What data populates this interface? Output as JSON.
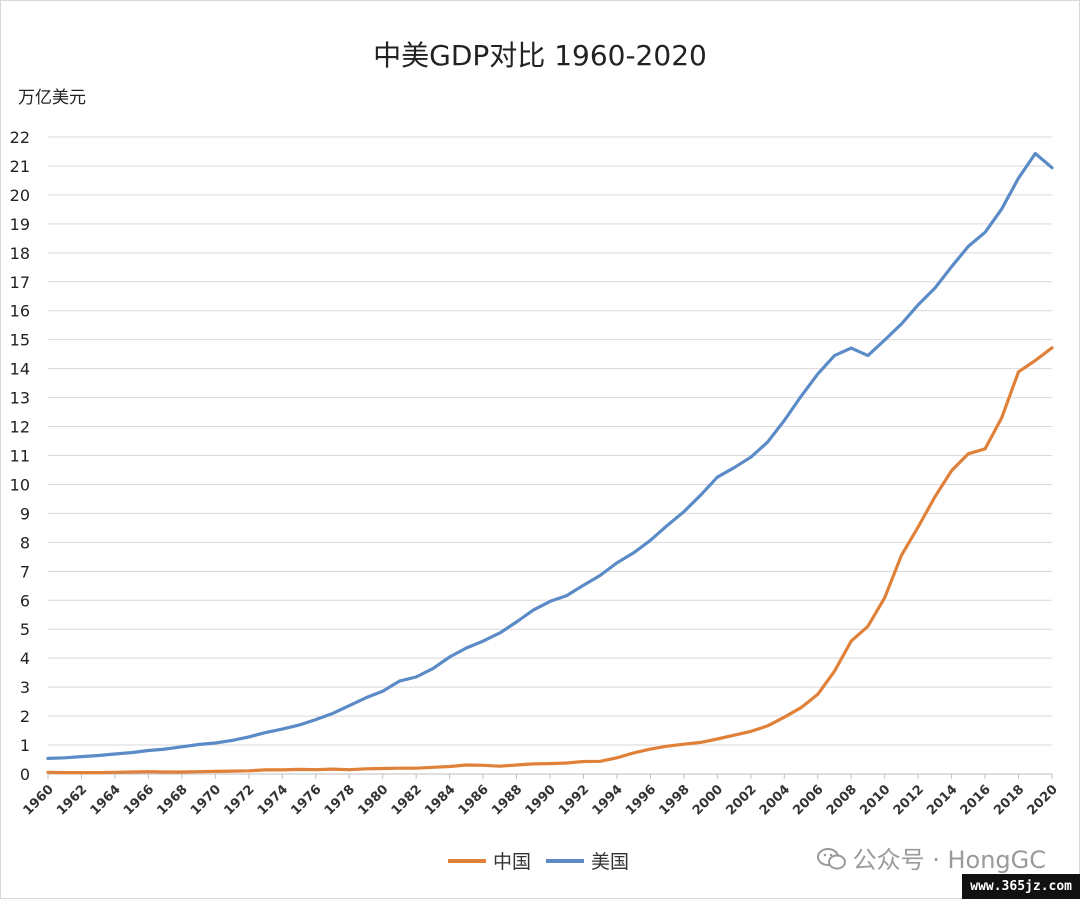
{
  "watermark": {
    "text": "公众号 · HongGC",
    "site": "www.365jz.com"
  },
  "colors": {
    "china": "#e0813a",
    "usa": "#5b8bc6"
  },
  "chart_data": {
    "type": "line",
    "title": "中美GDP对比 1960-2020",
    "ylabel": "万亿美元",
    "xlabel": "",
    "ylim": [
      0,
      22
    ],
    "xlim": [
      1960,
      2020
    ],
    "grid": true,
    "legend_position": "bottom",
    "yticks": [
      "0",
      "1",
      "2",
      "3",
      "4",
      "5",
      "6",
      "7",
      "8",
      "9",
      "10",
      "11",
      "12",
      "13",
      "14",
      "15",
      "16",
      "17",
      "18",
      "19",
      "20",
      "21",
      "22"
    ],
    "xticks": [
      "1960",
      "1962",
      "1964",
      "1966",
      "1968",
      "1970",
      "1972",
      "1974",
      "1976",
      "1978",
      "1980",
      "1982",
      "1984",
      "1986",
      "1988",
      "1990",
      "1992",
      "1994",
      "1996",
      "1998",
      "2000",
      "2002",
      "2004",
      "2006",
      "2008",
      "2010",
      "2012",
      "2014",
      "2016",
      "2018",
      "2020"
    ],
    "x": [
      1960,
      1961,
      1962,
      1963,
      1964,
      1965,
      1966,
      1967,
      1968,
      1969,
      1970,
      1971,
      1972,
      1973,
      1974,
      1975,
      1976,
      1977,
      1978,
      1979,
      1980,
      1981,
      1982,
      1983,
      1984,
      1985,
      1986,
      1987,
      1988,
      1989,
      1990,
      1991,
      1992,
      1993,
      1994,
      1995,
      1996,
      1997,
      1998,
      1999,
      2000,
      2001,
      2002,
      2003,
      2004,
      2005,
      2006,
      2007,
      2008,
      2009,
      2010,
      2011,
      2012,
      2013,
      2014,
      2015,
      2016,
      2017,
      2018,
      2019,
      2020
    ],
    "series": [
      {
        "name": "中国",
        "color": "#e0813a",
        "values": [
          0.06,
          0.05,
          0.05,
          0.05,
          0.06,
          0.07,
          0.08,
          0.07,
          0.07,
          0.08,
          0.09,
          0.1,
          0.11,
          0.14,
          0.14,
          0.16,
          0.15,
          0.17,
          0.15,
          0.18,
          0.19,
          0.2,
          0.2,
          0.23,
          0.26,
          0.31,
          0.3,
          0.27,
          0.31,
          0.35,
          0.36,
          0.38,
          0.43,
          0.44,
          0.56,
          0.73,
          0.86,
          0.96,
          1.03,
          1.09,
          1.21,
          1.34,
          1.47,
          1.66,
          1.96,
          2.29,
          2.75,
          3.55,
          4.59,
          5.1,
          6.09,
          7.55,
          8.53,
          9.57,
          10.48,
          11.06,
          11.23,
          12.31,
          13.89,
          14.28,
          14.72
        ]
      },
      {
        "name": "美国",
        "color": "#5b8bc6",
        "values": [
          0.54,
          0.56,
          0.6,
          0.64,
          0.69,
          0.74,
          0.81,
          0.86,
          0.94,
          1.02,
          1.07,
          1.16,
          1.28,
          1.43,
          1.55,
          1.69,
          1.88,
          2.09,
          2.36,
          2.63,
          2.86,
          3.21,
          3.35,
          3.64,
          4.04,
          4.35,
          4.59,
          4.87,
          5.25,
          5.66,
          5.96,
          6.16,
          6.52,
          6.86,
          7.29,
          7.64,
          8.07,
          8.58,
          9.06,
          9.63,
          10.25,
          10.58,
          10.94,
          11.46,
          12.21,
          13.04,
          13.81,
          14.45,
          14.71,
          14.45,
          14.99,
          15.54,
          16.2,
          16.78,
          17.52,
          18.22,
          18.71,
          19.52,
          20.58,
          21.43,
          20.94
        ]
      }
    ]
  }
}
